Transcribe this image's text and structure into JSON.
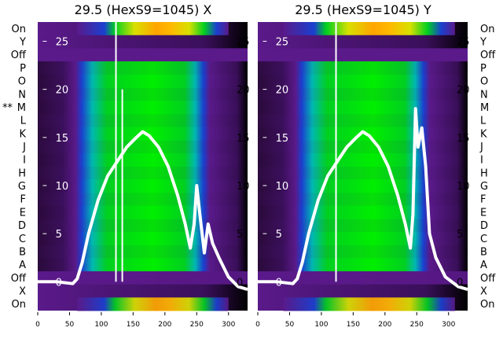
{
  "chart_data": [
    {
      "type": "heatmap",
      "title": "29.5 (HexS9=1045) X",
      "row_labels": [
        "On",
        "Y",
        "Off",
        "P",
        "O",
        "N",
        "M",
        "L",
        "K",
        "J",
        "I",
        "H",
        "G",
        "F",
        "E",
        "D",
        "C",
        "B",
        "A",
        "Off",
        "X",
        "On"
      ],
      "marked_row": {
        "label": "M",
        "marker": "**"
      },
      "xticks": [
        0,
        50,
        100,
        150,
        200,
        250,
        300
      ],
      "xlim": [
        0,
        330
      ],
      "yticks": [
        0,
        5,
        10,
        15,
        20,
        25
      ],
      "ylim": [
        -3,
        27
      ],
      "overlay_line": {
        "color": "#ffffff",
        "x": [
          0,
          30,
          55,
          62,
          70,
          80,
          95,
          110,
          125,
          140,
          155,
          165,
          175,
          190,
          205,
          220,
          232,
          240,
          246,
          250,
          255,
          262,
          268,
          275,
          285,
          300,
          315,
          330
        ],
        "y": [
          0,
          0,
          -0.2,
          0.3,
          2,
          5,
          8.5,
          11,
          12.5,
          14,
          15,
          15.6,
          15.2,
          14,
          12,
          9,
          6,
          3.5,
          6,
          10,
          7,
          3,
          6,
          4,
          2.5,
          0.5,
          -0.5,
          -0.8
        ]
      },
      "spikes": [
        {
          "x": 123,
          "y_top": 27
        },
        {
          "x": 133,
          "y_top": 20
        }
      ]
    },
    {
      "type": "heatmap",
      "title": "29.5 (HexS9=1045) Y",
      "row_labels": [
        "On",
        "Y",
        "Off",
        "P",
        "O",
        "N",
        "M",
        "L",
        "K",
        "J",
        "I",
        "H",
        "G",
        "F",
        "E",
        "D",
        "C",
        "B",
        "A",
        "Off",
        "X",
        "On"
      ],
      "xticks": [
        0,
        50,
        100,
        150,
        200,
        250,
        300
      ],
      "xlim": [
        0,
        330
      ],
      "yticks": [
        0,
        5,
        10,
        15,
        20,
        25
      ],
      "ylim": [
        -3,
        27
      ],
      "overlay_line": {
        "color": "#ffffff",
        "x": [
          0,
          30,
          55,
          62,
          70,
          80,
          95,
          110,
          125,
          140,
          155,
          165,
          175,
          190,
          205,
          220,
          232,
          240,
          244,
          248,
          252,
          258,
          264,
          270,
          280,
          295,
          315,
          330
        ],
        "y": [
          0,
          0,
          -0.2,
          0.3,
          2,
          5,
          8.5,
          11,
          12.5,
          14,
          15,
          15.6,
          15.2,
          14,
          12,
          9,
          6,
          3.5,
          7,
          18,
          14,
          16,
          12,
          5,
          2.5,
          0.5,
          -0.5,
          -0.8
        ]
      },
      "spikes": [
        {
          "x": 123,
          "y_top": 27
        }
      ]
    }
  ]
}
